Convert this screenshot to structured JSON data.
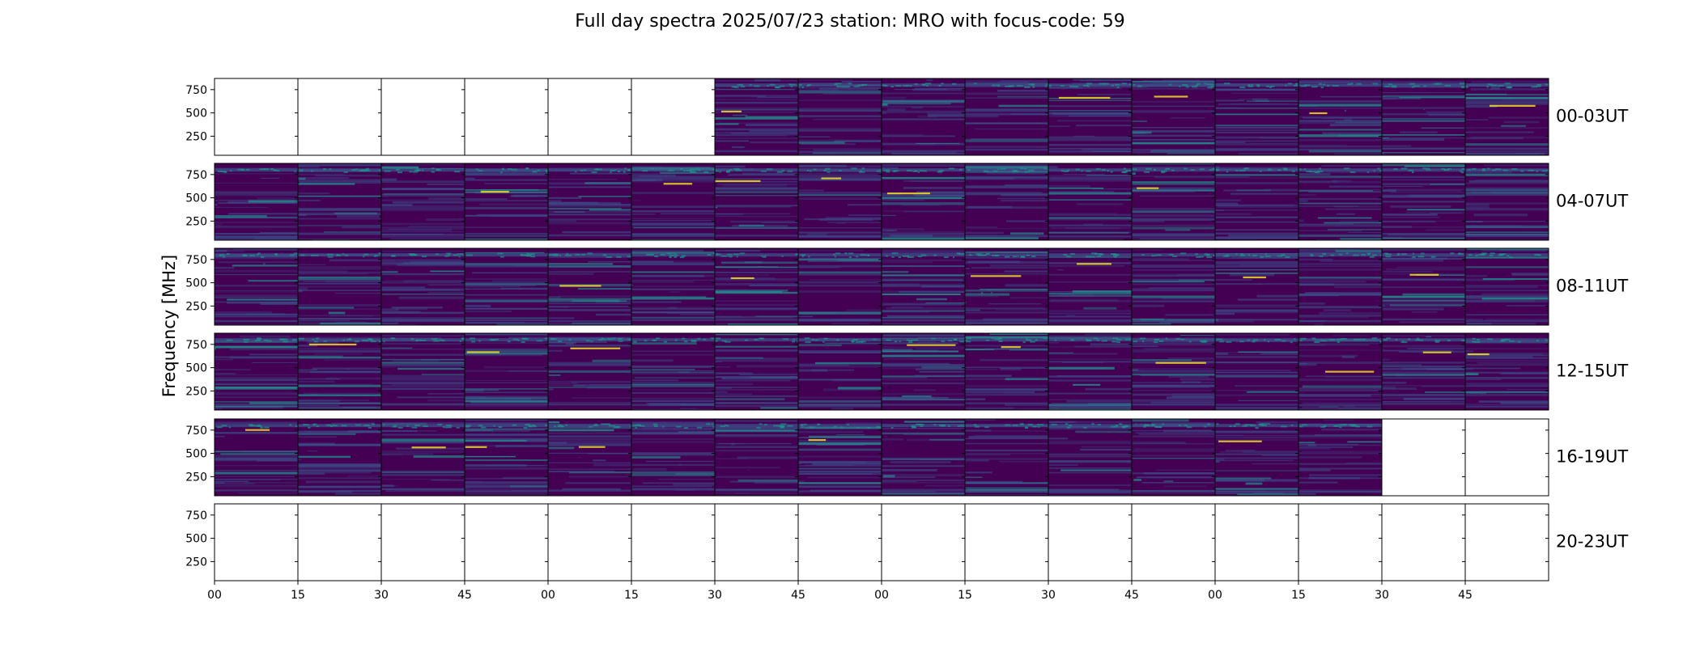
{
  "chart_data": {
    "type": "heatmap",
    "title": "Full day spectra 2025/07/23 station: MRO with focus-code: 59",
    "ylabel": "Frequency [MHz]",
    "yticks": [
      250,
      500,
      750
    ],
    "ylim": [
      45,
      870
    ],
    "xticks": [
      "00",
      "15",
      "30",
      "45",
      "00",
      "15",
      "30",
      "45",
      "00",
      "15",
      "30",
      "45",
      "00",
      "15",
      "30",
      "45"
    ],
    "panels_per_row": 16,
    "panel_minutes": 15,
    "colormap": "viridis",
    "colors": {
      "low": "#440154",
      "mid": "#3b528b",
      "high": "#21918c",
      "peak": "#fde725"
    },
    "rows": [
      {
        "label": "00-03UT",
        "filled": [
          0,
          0,
          0,
          0,
          0,
          0,
          1,
          1,
          1,
          1,
          1,
          1,
          1,
          1,
          1,
          1
        ]
      },
      {
        "label": "04-07UT",
        "filled": [
          1,
          1,
          1,
          1,
          1,
          1,
          1,
          1,
          1,
          1,
          1,
          1,
          1,
          1,
          1,
          1
        ]
      },
      {
        "label": "08-11UT",
        "filled": [
          1,
          1,
          1,
          1,
          1,
          1,
          1,
          1,
          1,
          1,
          1,
          1,
          1,
          1,
          1,
          1
        ]
      },
      {
        "label": "12-15UT",
        "filled": [
          1,
          1,
          1,
          1,
          1,
          1,
          1,
          1,
          1,
          1,
          1,
          1,
          1,
          1,
          1,
          1
        ]
      },
      {
        "label": "16-19UT",
        "filled": [
          1,
          1,
          1,
          1,
          1,
          1,
          1,
          1,
          1,
          1,
          1,
          1,
          1,
          1,
          0,
          0
        ]
      },
      {
        "label": "20-23UT",
        "filled": [
          0,
          0,
          0,
          0,
          0,
          0,
          0,
          0,
          0,
          0,
          0,
          0,
          0,
          0,
          0,
          0
        ]
      }
    ]
  }
}
